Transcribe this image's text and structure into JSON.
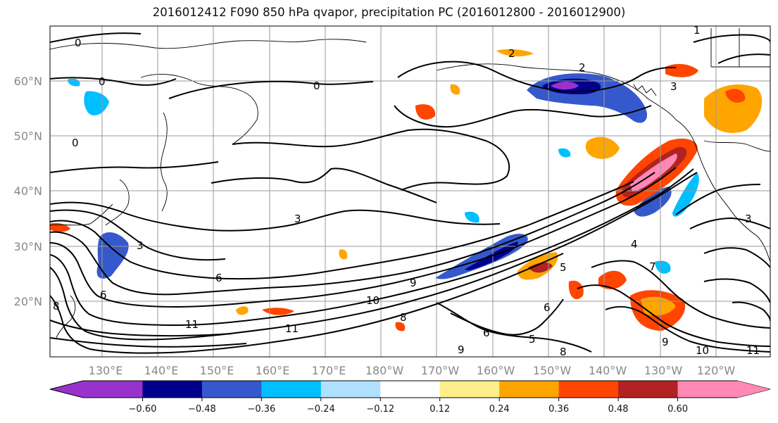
{
  "title": "2016012412 F090 850 hPa qvapor, precipitation PC (2016012800 - 2016012900)",
  "map": {
    "lat_labels": [
      "60°N",
      "50°N",
      "40°N",
      "30°N",
      "20°N"
    ],
    "lon_labels": [
      "130°E",
      "140°E",
      "150°E",
      "160°E",
      "170°E",
      "180°W",
      "170°W",
      "160°W",
      "150°W",
      "140°W",
      "130°W",
      "120°W"
    ],
    "contour_labels": [
      "0",
      "0",
      "0",
      "0",
      "1",
      "2",
      "2",
      "3",
      "3",
      "3",
      "3",
      "4",
      "5",
      "5",
      "6",
      "6",
      "6",
      "6",
      "7",
      "8",
      "8",
      "8",
      "9",
      "9",
      "9",
      "10",
      "10",
      "11",
      "11",
      "11"
    ]
  },
  "colorbar": {
    "colors": [
      "#9932cc",
      "#00008b",
      "#3559cc",
      "#00bfff",
      "#b0e0ff",
      "#ffffff",
      "#ffee8a",
      "#ffa500",
      "#ff4500",
      "#b22222",
      "#ff88b4"
    ],
    "ticks": [
      "−0.60",
      "−0.48",
      "−0.36",
      "−0.24",
      "−0.12",
      "0.12",
      "0.24",
      "0.36",
      "0.48",
      "0.60"
    ]
  }
}
